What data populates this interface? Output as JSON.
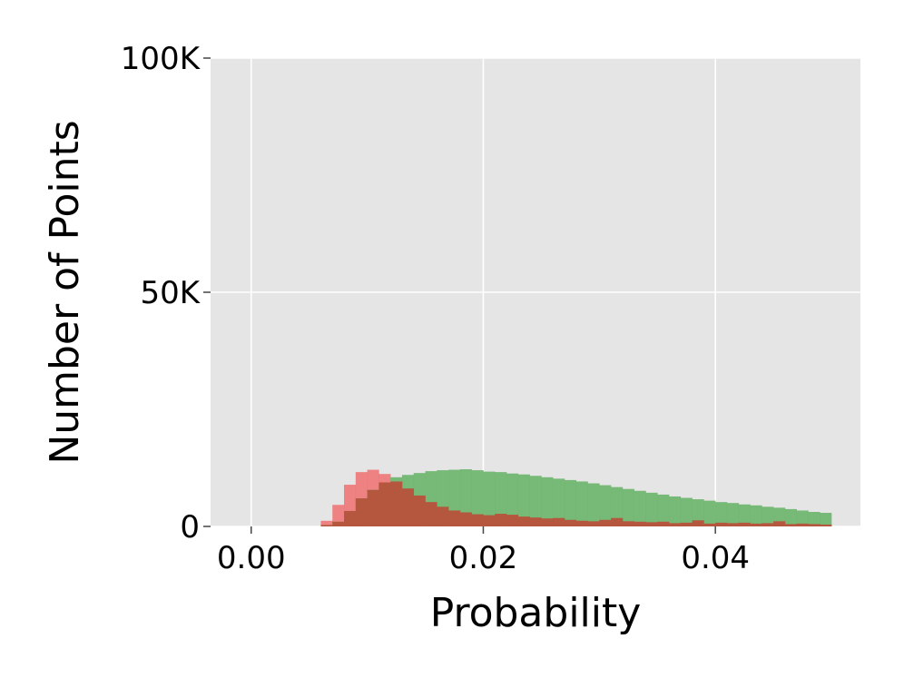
{
  "chart_data": {
    "type": "bar",
    "xlabel": "Probability",
    "ylabel": "Number of Points",
    "xlim": [
      -0.0035,
      0.0525
    ],
    "ylim": [
      0,
      100000
    ],
    "x_ticks": [
      {
        "value": 0.0,
        "label": "0.00"
      },
      {
        "value": 0.02,
        "label": "0.02"
      },
      {
        "value": 0.04,
        "label": "0.04"
      }
    ],
    "y_ticks": [
      {
        "value": 0,
        "label": "0"
      },
      {
        "value": 50000,
        "label": "50K"
      },
      {
        "value": 100000,
        "label": "100K"
      }
    ],
    "grid": true,
    "bin_width": 0.001,
    "x_start": 0.006,
    "series": [
      {
        "color": "#f07070",
        "opacity": 0.85,
        "values": [
          1200,
          4600,
          8900,
          11600,
          12100,
          11200,
          9600,
          8100,
          6600,
          5200,
          4200,
          3400,
          3000,
          2600,
          2400,
          2700,
          2500,
          2100,
          1900,
          1700,
          1800,
          1400,
          1200,
          1100,
          1400,
          1800,
          1100,
          1000,
          900,
          1000,
          700,
          800,
          1300,
          600,
          800,
          700,
          800,
          600,
          700,
          1100,
          500,
          600,
          500,
          400
        ]
      },
      {
        "color": "#6ab46a",
        "opacity": 0.9,
        "values": [
          300,
          1000,
          3300,
          6000,
          7800,
          9400,
          10500,
          11000,
          11400,
          11800,
          12000,
          12100,
          12200,
          12000,
          11700,
          11600,
          11300,
          11100,
          10800,
          10500,
          10200,
          9900,
          9600,
          9200,
          8800,
          8400,
          8000,
          7600,
          7200,
          6800,
          6400,
          6100,
          5800,
          5500,
          5200,
          5000,
          4700,
          4500,
          4200,
          4000,
          3700,
          3400,
          3100,
          2900
        ]
      }
    ],
    "overlap_color": "#b5573e"
  }
}
